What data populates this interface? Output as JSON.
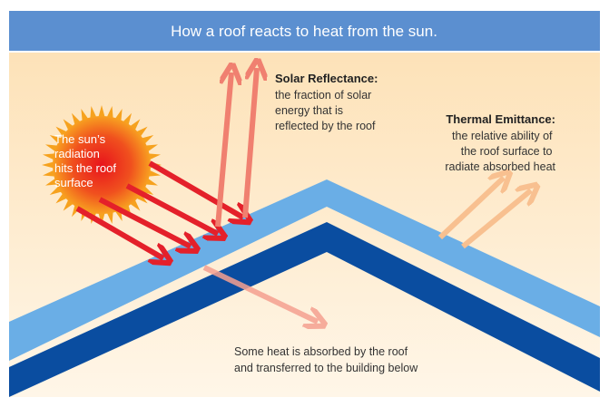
{
  "header": {
    "title": "How a roof reacts to heat from the sun."
  },
  "sun": {
    "lines": [
      "The sun’s",
      "radiation",
      "hits the roof",
      "surface"
    ]
  },
  "solar_reflectance": {
    "title": "Solar Reflectance:",
    "lines": [
      "the fraction of solar",
      "energy that is",
      "reflected by the roof"
    ]
  },
  "thermal_emittance": {
    "title": "Thermal Emittance:",
    "lines": [
      "the relative ability of",
      "the roof surface to",
      "radiate absorbed heat"
    ]
  },
  "absorbed": {
    "lines": [
      "Some heat is absorbed by the roof",
      "and transferred to the building below"
    ]
  }
}
